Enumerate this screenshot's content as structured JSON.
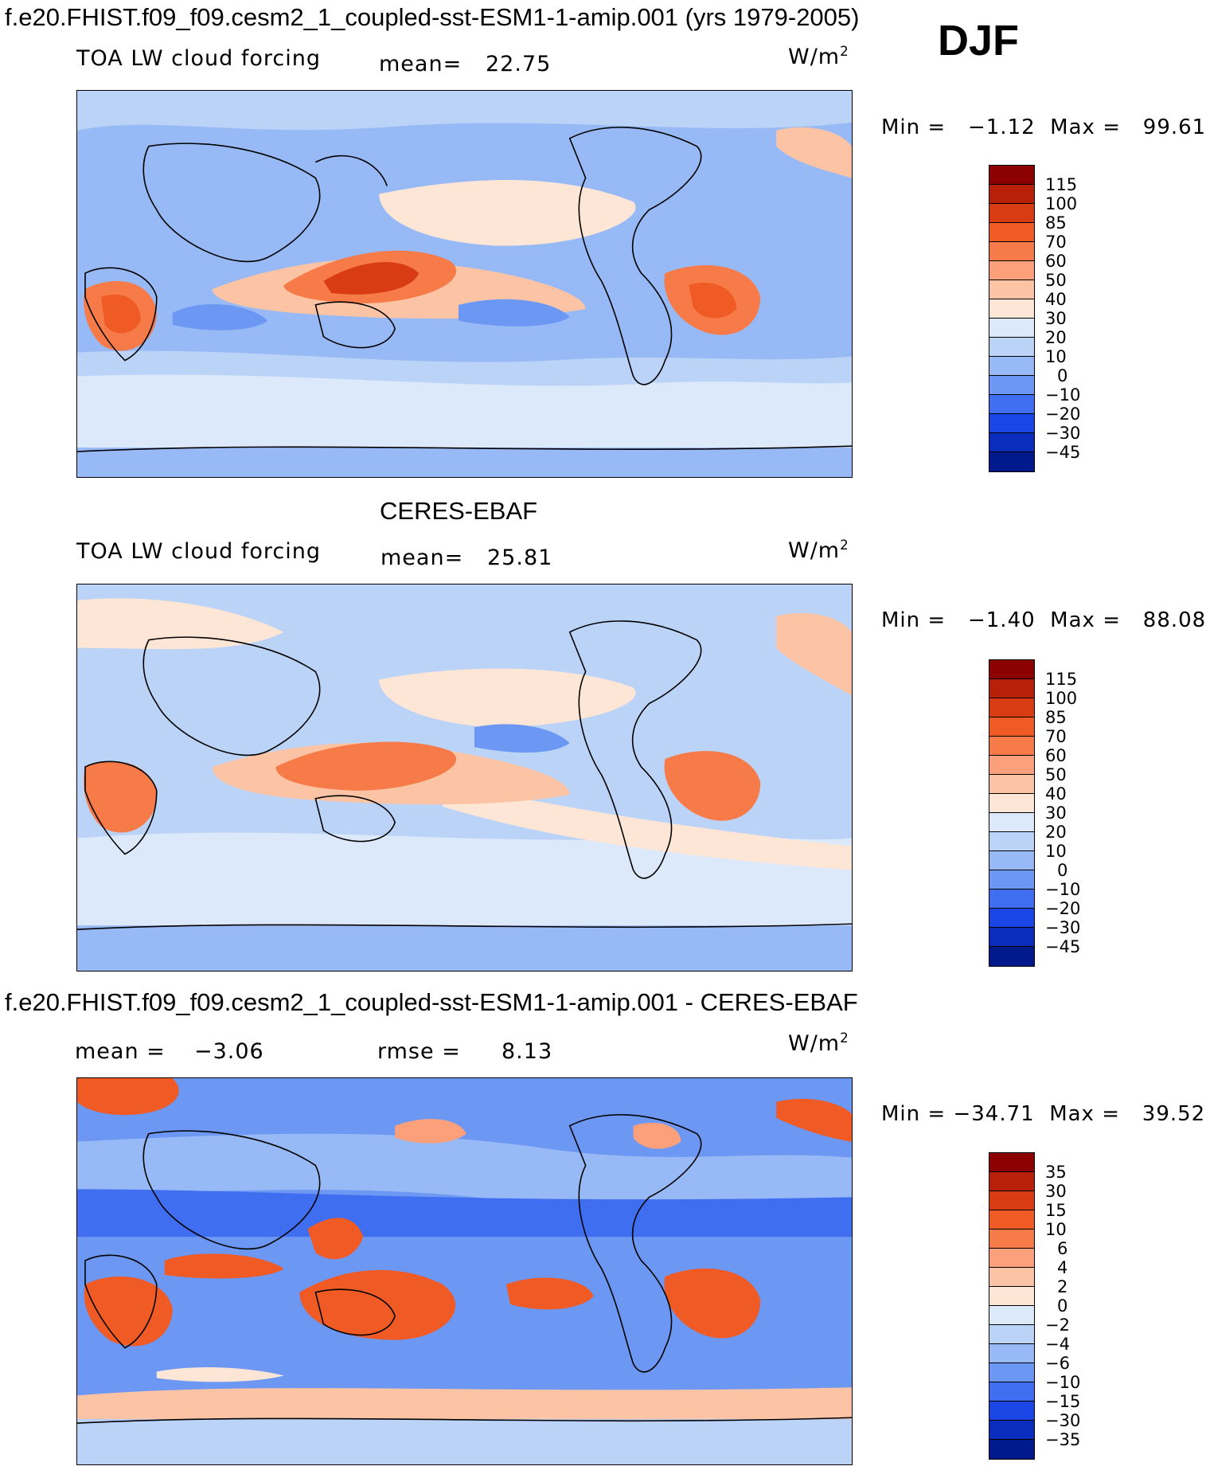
{
  "title": "f.e20.FHIST.f09_f09.cesm2_1_coupled-sst-ESM1-1-amip.001 (yrs 1979-2005)",
  "season": "DJF",
  "units": "W/m",
  "units_sup": "2",
  "panel1": {
    "label": "TOA LW cloud forcing",
    "mean_label": "mean=",
    "mean_value": "22.75",
    "min_max": "Min =   −1.12  Max =   99.61"
  },
  "panel2": {
    "heading": "CERES-EBAF",
    "label": "TOA LW cloud forcing",
    "mean_label": "mean=",
    "mean_value": "25.81",
    "min_max": "Min =   −1.40  Max =   88.08"
  },
  "panel3": {
    "heading": "f.e20.FHIST.f09_f09.cesm2_1_coupled-sst-ESM1-1-amip.001 - CERES-EBAF",
    "mean_label": "mean =",
    "mean_value": "−3.06",
    "rmse_label": "rmse =",
    "rmse_value": "8.13",
    "min_max": "Min = −34.71  Max =   39.52"
  },
  "colorbar_main": {
    "levels": [
      "115",
      "100",
      "85",
      "70",
      "60",
      "50",
      "40",
      "30",
      "20",
      "10",
      "0",
      "−10",
      "−20",
      "−30",
      "−45"
    ],
    "colors": [
      "#8b0000",
      "#b8200a",
      "#d93b12",
      "#f05a24",
      "#f77b48",
      "#fba07a",
      "#fcc4a4",
      "#fde6d6",
      "#dce9fa",
      "#bcd3f8",
      "#97b9f5",
      "#6c97f3",
      "#3f6ef0",
      "#1a46e6",
      "#0a2dbe",
      "#001a8c"
    ]
  },
  "colorbar_diff": {
    "levels": [
      "35",
      "30",
      "15",
      "10",
      "6",
      "4",
      "2",
      "0",
      "−2",
      "−4",
      "−6",
      "−10",
      "−15",
      "−30",
      "−35"
    ],
    "colors": [
      "#8b0000",
      "#b8200a",
      "#d93b12",
      "#f05a24",
      "#f77b48",
      "#fba07a",
      "#fcc4a4",
      "#fde6d6",
      "#dce9fa",
      "#bcd3f8",
      "#97b9f5",
      "#6c97f3",
      "#3f6ef0",
      "#1a46e6",
      "#0a2dbe",
      "#001a8c"
    ]
  }
}
